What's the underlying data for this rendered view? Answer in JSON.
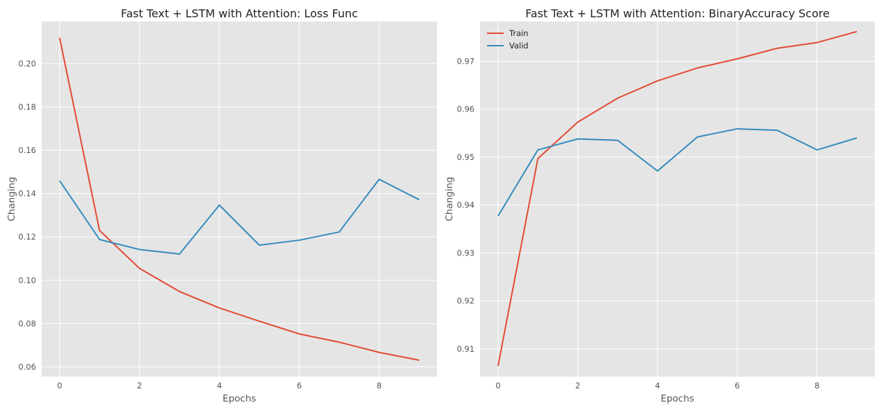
{
  "colors": {
    "train": "#e24a33",
    "valid": "#348abd",
    "plot_bg": "#e5e5e5",
    "grid": "#ffffff"
  },
  "chart_data": [
    {
      "type": "line",
      "title": "Fast Text + LSTM with Attention: Loss Func",
      "xlabel": "Epochs",
      "ylabel": "Changing",
      "x": [
        0,
        1,
        2,
        3,
        4,
        5,
        6,
        7,
        8,
        9
      ],
      "xlim": [
        -0.45,
        9.45
      ],
      "ylim": [
        0.0555,
        0.2195
      ],
      "xticks": [
        0,
        2,
        4,
        6,
        8
      ],
      "yticks": [
        0.06,
        0.08,
        0.1,
        0.12,
        0.14,
        0.16,
        0.18,
        0.2
      ],
      "ytick_labels": [
        "0.06",
        "0.08",
        "0.10",
        "0.12",
        "0.14",
        "0.16",
        "0.18",
        "0.20"
      ],
      "grid": true,
      "legend": "none",
      "series": [
        {
          "key": "train",
          "values": [
            0.212,
            0.123,
            0.1055,
            0.0948,
            0.0872,
            0.0811,
            0.0752,
            0.0714,
            0.0667,
            0.0631
          ]
        },
        {
          "key": "valid",
          "values": [
            0.146,
            0.1188,
            0.1142,
            0.1121,
            0.1347,
            0.1162,
            0.1185,
            0.1223,
            0.1466,
            0.1372
          ]
        }
      ]
    },
    {
      "type": "line",
      "title": "Fast Text + LSTM with Attention: BinaryAccuracy Score",
      "xlabel": "Epochs",
      "ylabel": "Changing",
      "x": [
        0,
        1,
        2,
        3,
        4,
        5,
        6,
        7,
        8,
        9
      ],
      "xlim": [
        -0.45,
        9.45
      ],
      "ylim": [
        0.9042,
        0.9783
      ],
      "xticks": [
        0,
        2,
        4,
        6,
        8
      ],
      "yticks": [
        0.91,
        0.92,
        0.93,
        0.94,
        0.95,
        0.96,
        0.97
      ],
      "ytick_labels": [
        "0.91",
        "0.92",
        "0.93",
        "0.94",
        "0.95",
        "0.96",
        "0.97"
      ],
      "grid": true,
      "legend": "top-left",
      "series": [
        {
          "key": "train",
          "name": "Train",
          "values": [
            0.9064,
            0.9497,
            0.9573,
            0.9623,
            0.9659,
            0.9686,
            0.9705,
            0.9727,
            0.9739,
            0.9762
          ]
        },
        {
          "key": "valid",
          "name": "Valid",
          "values": [
            0.9377,
            0.9515,
            0.9538,
            0.9535,
            0.9471,
            0.9542,
            0.9559,
            0.9556,
            0.9515,
            0.954
          ]
        }
      ]
    }
  ]
}
